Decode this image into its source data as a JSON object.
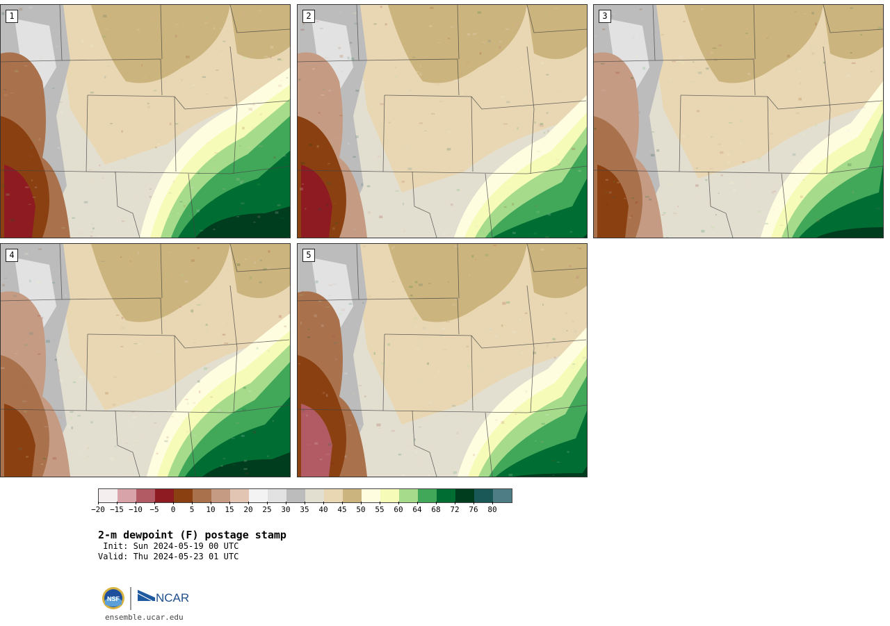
{
  "panels": [
    {
      "label": "1"
    },
    {
      "label": "2"
    },
    {
      "label": "3"
    },
    {
      "label": "4"
    },
    {
      "label": "5"
    }
  ],
  "colorbar": {
    "colors": [
      "#f5eeee",
      "#d8a4a9",
      "#b25b64",
      "#8e1b22",
      "#8a4010",
      "#a9714c",
      "#c59c83",
      "#e2c6b3",
      "#f3f3f3",
      "#e2e2e2",
      "#bcbcbc",
      "#e3dfd0",
      "#e8d7b2",
      "#ccb47e",
      "#fffde0",
      "#f6fbb8",
      "#a6db8c",
      "#41a85a",
      "#006d32",
      "#003d1e",
      "#1a5858",
      "#4f7d86"
    ],
    "tick_labels": [
      "−20",
      "−15",
      "−10",
      "−5",
      "0",
      "5",
      "10",
      "15",
      "20",
      "25",
      "30",
      "35",
      "40",
      "45",
      "50",
      "55",
      "60",
      "64",
      "68",
      "72",
      "76",
      "80"
    ]
  },
  "title": "2-m dewpoint (F) postage stamp",
  "init_text": " Init: Sun 2024-05-19 00 UTC",
  "valid_text": "Valid: Thu 2024-05-23 01 UTC",
  "logo_nsf_text": "NSF",
  "logo_ncar_text": "NCAR",
  "site_text": "ensemble.ucar.edu",
  "legend_swatch": "#0000aa"
}
